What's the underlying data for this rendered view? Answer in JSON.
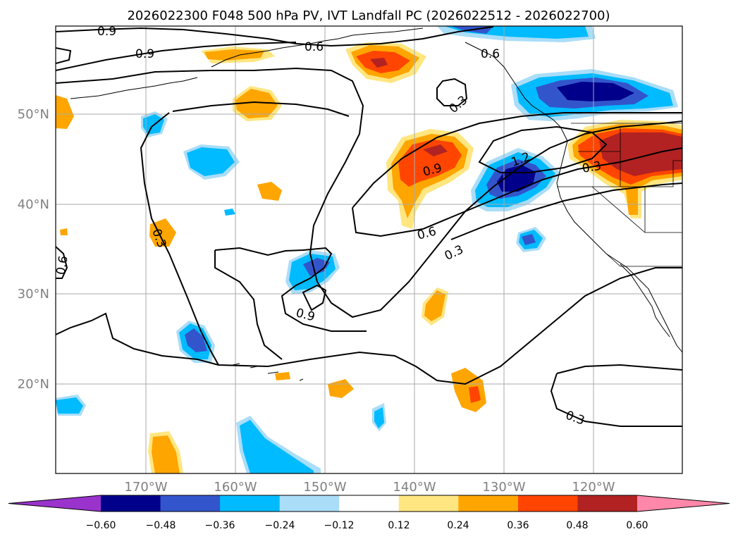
{
  "title": "2026022300 F048 500 hPa PV, IVT Landfall PC (2026022512 - 2026022700)",
  "map": {
    "lat_labels": [
      "50°N",
      "40°N",
      "30°N",
      "20°N"
    ],
    "lon_labels": [
      "170°W",
      "160°W",
      "150°W",
      "140°W",
      "130°W",
      "120°W"
    ],
    "contour_labels": [
      "0.9",
      "0.9",
      "0.6",
      "0.6",
      "0.3",
      "1.2",
      "0.3",
      "0.9",
      "0.6",
      "0.3",
      "0.3",
      "0.6",
      "0.9",
      "0.3"
    ],
    "contour_color": "#000000",
    "coastline_color": "#000000",
    "grid_color": "#aaaaaa"
  },
  "colorbar": {
    "tick_labels": [
      "−0.60",
      "−0.48",
      "−0.36",
      "−0.24",
      "−0.12",
      "0.12",
      "0.24",
      "0.36",
      "0.48",
      "0.60"
    ],
    "colors": [
      "#9933cc",
      "#00008b",
      "#3355cc",
      "#00bbff",
      "#aaddf8",
      "#ffffff",
      "#ffe680",
      "#ffa500",
      "#ff4500",
      "#b22222",
      "#ff88aa"
    ]
  }
}
